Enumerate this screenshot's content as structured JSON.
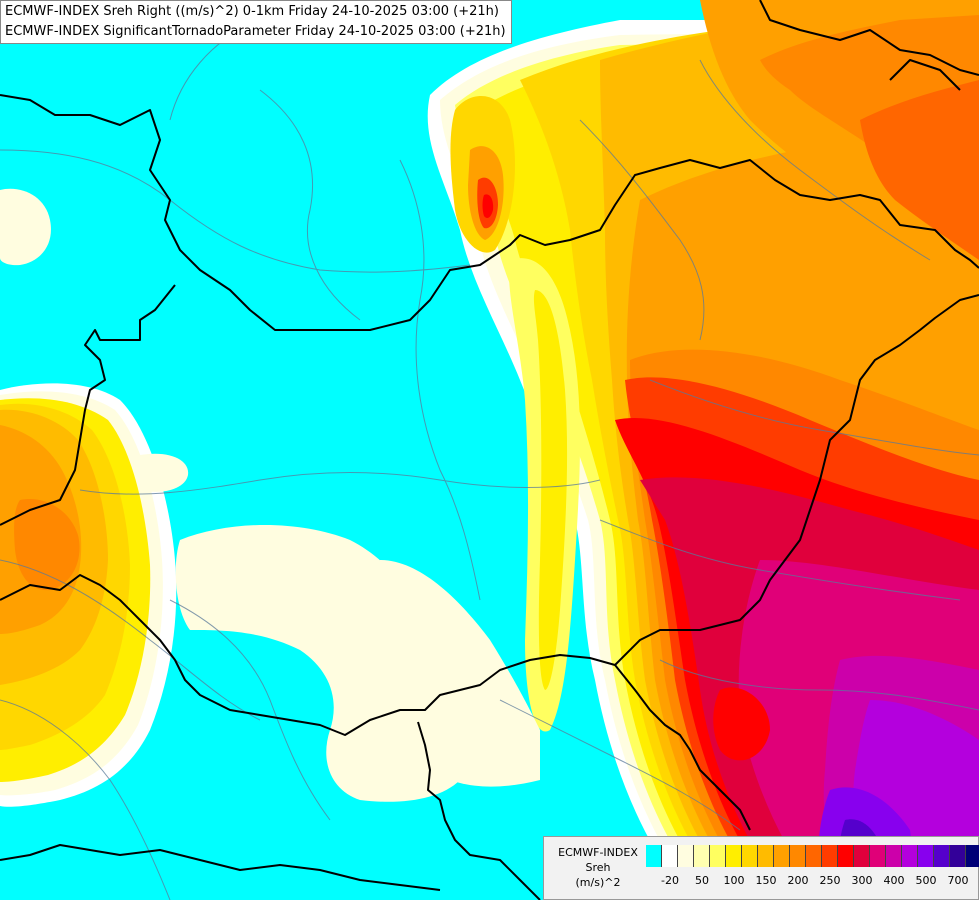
{
  "title_lines": [
    "ECMWF-INDEX Sreh Right ((m/s)^2) 0-1km Friday 24-10-2025 03:00 (+21h)",
    "ECMWF-INDEX SignificantTornadoParameter Friday 24-10-2025 03:00 (+21h)"
  ],
  "legend": {
    "title_lines": [
      "ECMWF-INDEX",
      "Sreh",
      "(m/s)^2"
    ],
    "colors": [
      "#00ffff",
      "#ffffff",
      "#fffde0",
      "#ffffb0",
      "#ffff60",
      "#ffee00",
      "#ffd700",
      "#ffbb00",
      "#ffa000",
      "#ff8800",
      "#ff6600",
      "#ff3c00",
      "#ff0000",
      "#e0003c",
      "#e00078",
      "#cc00aa",
      "#b400dd",
      "#8800ee",
      "#5500cc",
      "#330099",
      "#000077"
    ],
    "tick_labels": [
      "-20",
      "50",
      "100",
      "150",
      "200",
      "250",
      "300",
      "400",
      "500",
      "700"
    ]
  }
}
